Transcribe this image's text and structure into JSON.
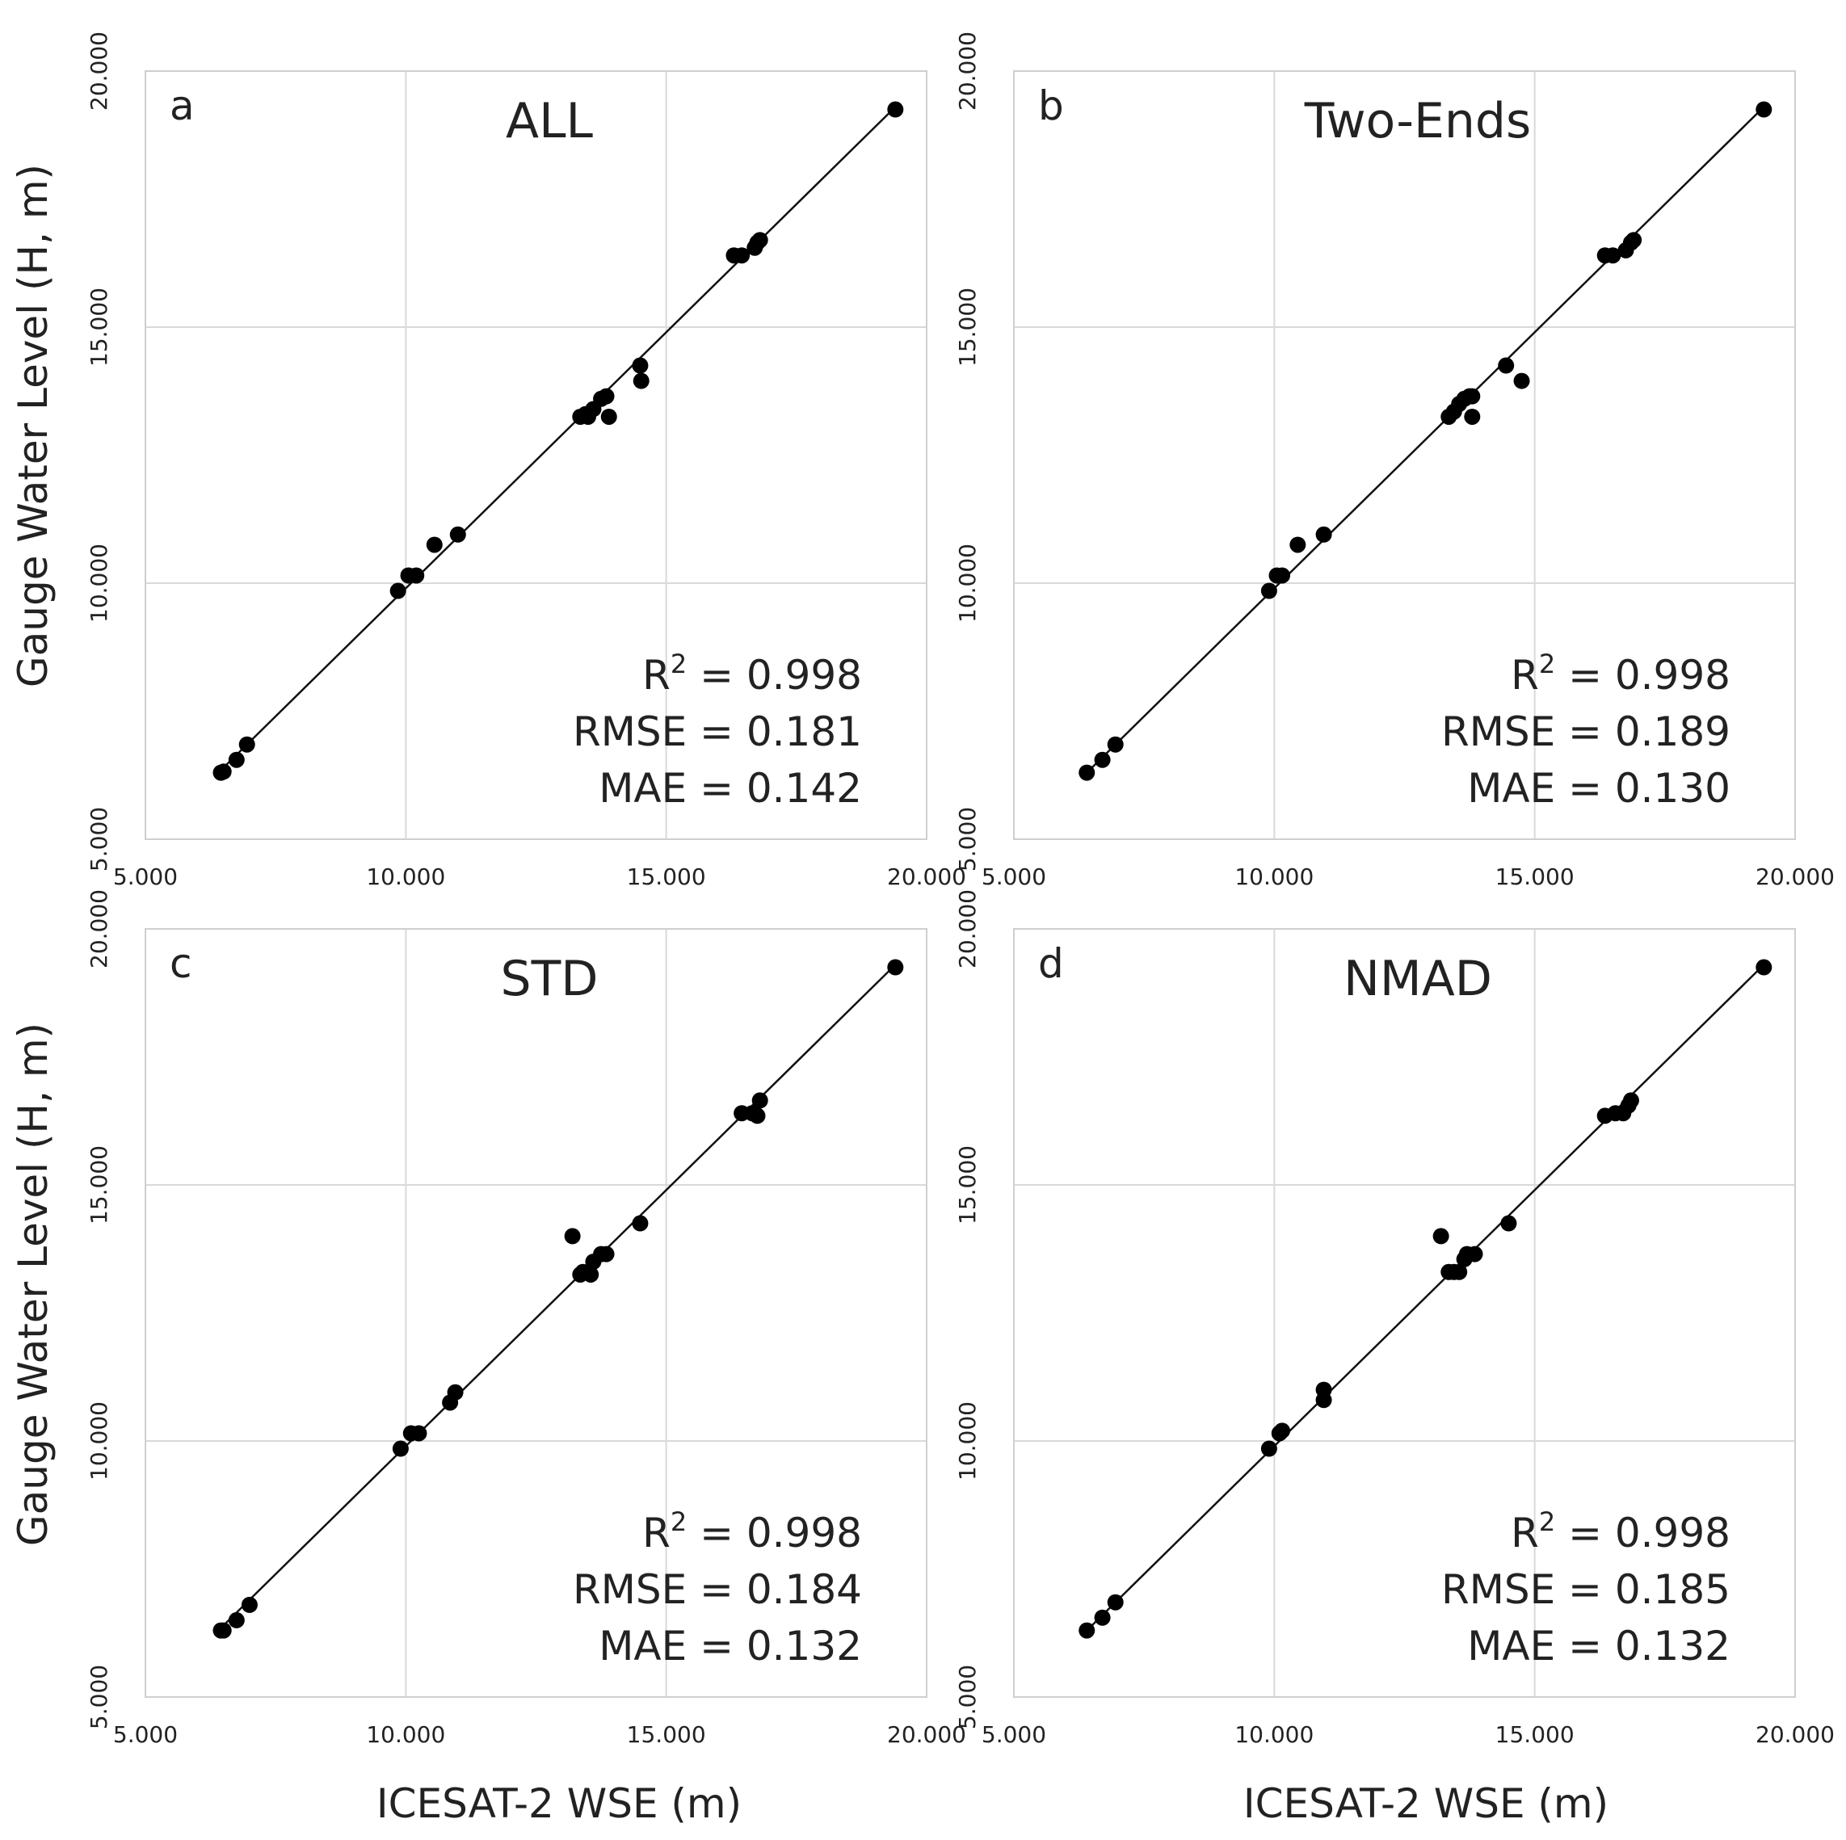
{
  "figure": {
    "ylabel": "Gauge Water Level (H, m)",
    "xlabel": "ICESAT-2 WSE (m)",
    "tick_labels": [
      "5.000",
      "10.000",
      "15.000",
      "20.000"
    ]
  },
  "chart_data": [
    {
      "type": "scatter",
      "panel": "a",
      "title": "ALL",
      "xlabel": "ICESAT-2 WSE (m)",
      "ylabel": "Gauge Water Level (H, m)",
      "xlim": [
        5,
        20
      ],
      "ylim": [
        5,
        20
      ],
      "xticks": [
        5,
        10,
        15,
        20
      ],
      "yticks": [
        5,
        10,
        15,
        20
      ],
      "tick_labels": [
        "5.000",
        "10.000",
        "15.000",
        "20.000"
      ],
      "grid": true,
      "fit_line": {
        "x": [
          6.4,
          19.4
        ],
        "y": [
          6.3,
          19.3
        ]
      },
      "stats": {
        "r2_label": "R",
        "r2_sup": "2",
        "r2_value": "= 0.998",
        "rmse": "RMSE = 0.181",
        "mae": "MAE = 0.142"
      },
      "points": {
        "x": [
          6.45,
          6.5,
          6.75,
          6.95,
          9.85,
          10.05,
          10.2,
          10.55,
          11.0,
          13.35,
          13.45,
          13.5,
          13.6,
          13.75,
          13.85,
          13.9,
          14.5,
          14.52,
          16.3,
          16.45,
          16.7,
          16.75,
          16.8,
          19.4
        ],
        "y": [
          6.3,
          6.32,
          6.55,
          6.85,
          9.85,
          10.15,
          10.15,
          10.75,
          10.95,
          13.25,
          13.3,
          13.25,
          13.4,
          13.6,
          13.65,
          13.25,
          14.25,
          13.95,
          16.4,
          16.4,
          16.55,
          16.65,
          16.7,
          19.25
        ]
      }
    },
    {
      "type": "scatter",
      "panel": "b",
      "title": "Two-Ends",
      "xlabel": "ICESAT-2 WSE (m)",
      "ylabel": "",
      "xlim": [
        5,
        20
      ],
      "ylim": [
        5,
        20
      ],
      "xticks": [
        5,
        10,
        15,
        20
      ],
      "yticks": [
        5,
        10,
        15,
        20
      ],
      "tick_labels": [
        "5.000",
        "10.000",
        "15.000",
        "20.000"
      ],
      "grid": true,
      "fit_line": {
        "x": [
          6.4,
          19.4
        ],
        "y": [
          6.3,
          19.3
        ]
      },
      "stats": {
        "r2_label": "R",
        "r2_sup": "2",
        "r2_value": "= 0.998",
        "rmse": "RMSE = 0.189",
        "mae": "MAE = 0.130"
      },
      "points": {
        "x": [
          6.4,
          6.7,
          6.95,
          9.9,
          10.05,
          10.15,
          10.45,
          10.95,
          13.35,
          13.45,
          13.55,
          13.65,
          13.75,
          13.8,
          13.8,
          14.45,
          14.75,
          16.35,
          16.5,
          16.75,
          16.85,
          16.9,
          19.4
        ],
        "y": [
          6.3,
          6.55,
          6.85,
          9.85,
          10.15,
          10.15,
          10.75,
          10.95,
          13.25,
          13.35,
          13.5,
          13.6,
          13.65,
          13.65,
          13.25,
          14.25,
          13.95,
          16.4,
          16.4,
          16.5,
          16.65,
          16.7,
          19.25
        ]
      }
    },
    {
      "type": "scatter",
      "panel": "c",
      "title": "STD",
      "xlabel": "ICESAT-2 WSE (m)",
      "ylabel": "Gauge Water Level (H, m)",
      "xlim": [
        5,
        20
      ],
      "ylim": [
        5,
        20
      ],
      "xticks": [
        5,
        10,
        15,
        20
      ],
      "yticks": [
        5,
        10,
        15,
        20
      ],
      "tick_labels": [
        "5.000",
        "10.000",
        "15.000",
        "20.000"
      ],
      "grid": true,
      "fit_line": {
        "x": [
          6.4,
          19.4
        ],
        "y": [
          6.3,
          19.3
        ]
      },
      "stats": {
        "r2_label": "R",
        "r2_sup": "2",
        "r2_value": "= 0.998",
        "rmse": "RMSE = 0.184",
        "mae": "MAE = 0.132"
      },
      "points": {
        "x": [
          6.45,
          6.5,
          6.75,
          7.0,
          9.9,
          10.1,
          10.25,
          10.85,
          10.95,
          13.2,
          13.35,
          13.4,
          13.55,
          13.6,
          13.75,
          13.85,
          14.5,
          16.45,
          16.65,
          16.75,
          16.8,
          19.4
        ],
        "y": [
          6.3,
          6.3,
          6.5,
          6.8,
          9.85,
          10.15,
          10.15,
          10.75,
          10.95,
          14.0,
          13.25,
          13.3,
          13.25,
          13.5,
          13.65,
          13.65,
          14.25,
          16.4,
          16.4,
          16.35,
          16.65,
          19.25
        ]
      }
    },
    {
      "type": "scatter",
      "panel": "d",
      "title": "NMAD",
      "xlabel": "ICESAT-2 WSE (m)",
      "ylabel": "",
      "xlim": [
        5,
        20
      ],
      "ylim": [
        5,
        20
      ],
      "xticks": [
        5,
        10,
        15,
        20
      ],
      "yticks": [
        5,
        10,
        15,
        20
      ],
      "tick_labels": [
        "5.000",
        "10.000",
        "15.000",
        "20.000"
      ],
      "grid": true,
      "fit_line": {
        "x": [
          6.4,
          19.4
        ],
        "y": [
          6.3,
          19.3
        ]
      },
      "stats": {
        "r2_label": "R",
        "r2_sup": "2",
        "r2_value": "= 0.998",
        "rmse": "RMSE = 0.185",
        "mae": "MAE = 0.132"
      },
      "points": {
        "x": [
          6.4,
          6.7,
          6.95,
          9.9,
          10.1,
          10.15,
          10.95,
          10.95,
          13.2,
          13.35,
          13.45,
          13.55,
          13.65,
          13.7,
          13.85,
          14.5,
          16.35,
          16.55,
          16.7,
          16.8,
          16.85,
          19.4
        ],
        "y": [
          6.3,
          6.55,
          6.85,
          9.85,
          10.15,
          10.2,
          10.8,
          11.0,
          14.0,
          13.3,
          13.3,
          13.3,
          13.55,
          13.65,
          13.65,
          14.25,
          16.35,
          16.4,
          16.4,
          16.55,
          16.65,
          19.25
        ]
      }
    }
  ]
}
